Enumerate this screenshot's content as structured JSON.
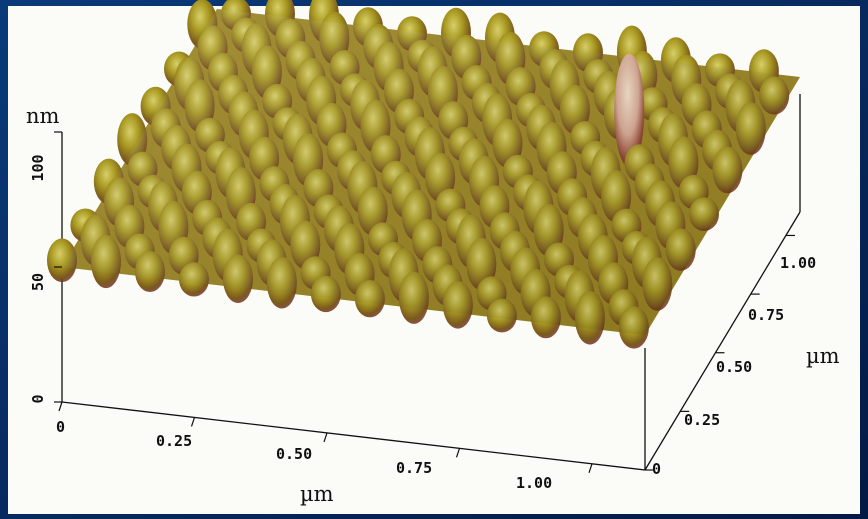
{
  "chart_data": {
    "type": "surface",
    "z_axis": {
      "unit": "nm",
      "ticks": [
        "0",
        "50",
        "100"
      ],
      "range": [
        0,
        100
      ]
    },
    "x_axis": {
      "unit": "µm",
      "ticks": [
        "0",
        "0.25",
        "0.50",
        "0.75",
        "1.00"
      ],
      "range": [
        0,
        1.1
      ]
    },
    "y_axis": {
      "unit": "µm",
      "ticks": [
        "0",
        "0.25",
        "0.50",
        "0.75",
        "1.00"
      ],
      "range": [
        0,
        1.1
      ]
    },
    "surface": {
      "pattern": "periodic array of rounded bumps",
      "base_height_nm": 50,
      "bump_amplitude_nm": 12,
      "period_um": 0.083,
      "outlier": {
        "x_um": 0.9,
        "y_um": 0.75,
        "height_nm": 80
      }
    },
    "colors": {
      "panel": "#fbfbf7",
      "surface_high": "#e8c9a4",
      "surface_mid": "#b8a226",
      "surface_low": "#7a2f1a",
      "slide_background": "#06245a"
    }
  }
}
